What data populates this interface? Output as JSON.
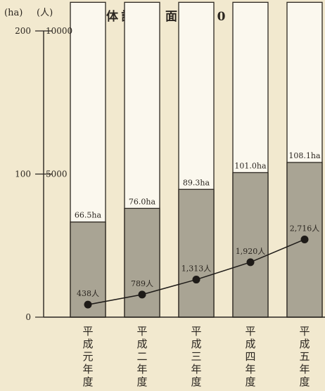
{
  "header": {
    "unit_area": "(ha)",
    "unit_people": "(人)",
    "title": "全体計画　面積220 ha"
  },
  "colors": {
    "background": "#f2e9cf",
    "bar_fill": "#a9a494",
    "bar_total": "#fbf8ee",
    "line": "#1e1b18"
  },
  "chart_data": {
    "type": "bar",
    "title": "全体計画　面積220 ha",
    "categories": [
      "平成元年度",
      "平成二年度",
      "平成三年度",
      "平成四年度",
      "平成五年度"
    ],
    "series": [
      {
        "kind": "bar",
        "axis": "left",
        "values": [
          66.5,
          76.0,
          89.3,
          101.0,
          108.1
        ],
        "labels": [
          "66.5ha",
          "76.0ha",
          "89.3ha",
          "101.0ha",
          "108.1ha"
        ]
      },
      {
        "kind": "line",
        "axis": "right",
        "values": [
          438,
          789,
          1313,
          1920,
          2716
        ],
        "labels": [
          "438人",
          "789人",
          "1,313人",
          "1,920人",
          "2,716人"
        ]
      }
    ],
    "total_area": 220,
    "left_axis": {
      "unit": "(ha)",
      "ticks": [
        0,
        100,
        200
      ],
      "tick_labels": [
        "0",
        "100",
        "200"
      ],
      "ylim": [
        0,
        200
      ]
    },
    "right_axis": {
      "unit": "(人)",
      "ticks": [
        5000,
        10000
      ],
      "tick_labels": [
        "5000",
        "10000"
      ],
      "ylim": [
        0,
        10000
      ]
    },
    "grid": false,
    "legend": "none"
  }
}
